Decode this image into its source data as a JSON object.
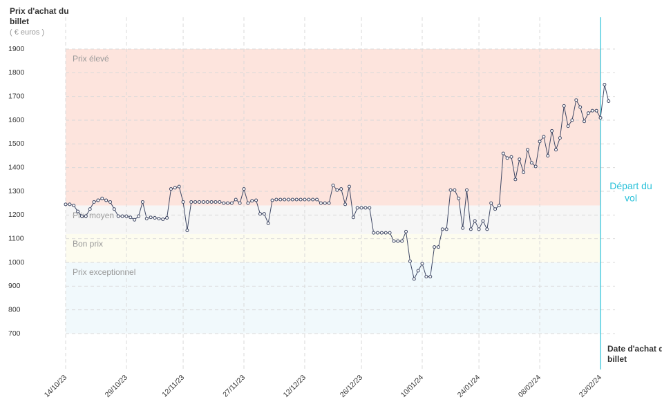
{
  "chart_data": {
    "type": "line",
    "y_axis_title": "Prix d'achat du billet",
    "y_axis_unit": "( € euros )",
    "x_axis_title": "Date d'achat du billet",
    "annotation": "Départ du vol",
    "annotation_x": 132,
    "color": "#3d4663",
    "annotation_color": "#29c1d9",
    "xlim": [
      0,
      132
    ],
    "ylim": [
      700,
      1900
    ],
    "yticks": [
      700,
      800,
      900,
      1000,
      1100,
      1200,
      1300,
      1400,
      1500,
      1600,
      1700,
      1800,
      1900
    ],
    "xticks": [
      {
        "value": 0,
        "label": "14/10/23"
      },
      {
        "value": 15,
        "label": "29/10/23"
      },
      {
        "value": 29,
        "label": "12/11/23"
      },
      {
        "value": 44,
        "label": "27/11/23"
      },
      {
        "value": 59,
        "label": "12/12/23"
      },
      {
        "value": 73,
        "label": "26/12/23"
      },
      {
        "value": 88,
        "label": "10/01/24"
      },
      {
        "value": 102,
        "label": "24/01/24"
      },
      {
        "value": 117,
        "label": "08/02/24"
      },
      {
        "value": 132,
        "label": "23/02/24"
      }
    ],
    "bands": [
      {
        "name": "Prix élevé",
        "from": 1240,
        "to": 1900,
        "color": "#fde4dd"
      },
      {
        "name": "Prix moyen",
        "from": 1120,
        "to": 1240,
        "color": "#f6f6f6"
      },
      {
        "name": "Bon prix",
        "from": 1000,
        "to": 1120,
        "color": "#fdfcef"
      },
      {
        "name": "Prix exceptionnel",
        "from": 700,
        "to": 1000,
        "color": "#f1f9fc"
      }
    ],
    "grid": true,
    "values": [
      1245,
      1245,
      1240,
      1215,
      1195,
      1195,
      1225,
      1255,
      1262,
      1270,
      1262,
      1255,
      1225,
      1195,
      1195,
      1195,
      1190,
      1180,
      1195,
      1255,
      1185,
      1190,
      1188,
      1185,
      1182,
      1188,
      1310,
      1315,
      1320,
      1255,
      1135,
      1255,
      1255,
      1255,
      1255,
      1255,
      1255,
      1255,
      1255,
      1250,
      1250,
      1250,
      1265,
      1250,
      1310,
      1250,
      1260,
      1262,
      1205,
      1205,
      1165,
      1262,
      1265,
      1265,
      1265,
      1265,
      1265,
      1265,
      1265,
      1265,
      1265,
      1265,
      1265,
      1250,
      1250,
      1250,
      1325,
      1305,
      1310,
      1245,
      1320,
      1190,
      1230,
      1230,
      1230,
      1230,
      1125,
      1125,
      1125,
      1125,
      1125,
      1090,
      1090,
      1090,
      1130,
      1005,
      930,
      965,
      995,
      940,
      940,
      1065,
      1065,
      1140,
      1140,
      1305,
      1305,
      1270,
      1145,
      1305,
      1140,
      1175,
      1140,
      1175,
      1140,
      1250,
      1225,
      1240,
      1460,
      1440,
      1445,
      1350,
      1435,
      1380,
      1475,
      1420,
      1405,
      1510,
      1530,
      1450,
      1555,
      1475,
      1525,
      1660,
      1575,
      1600,
      1685,
      1655,
      1595,
      1630,
      1640,
      1640,
      1610,
      1750,
      1680
    ]
  }
}
